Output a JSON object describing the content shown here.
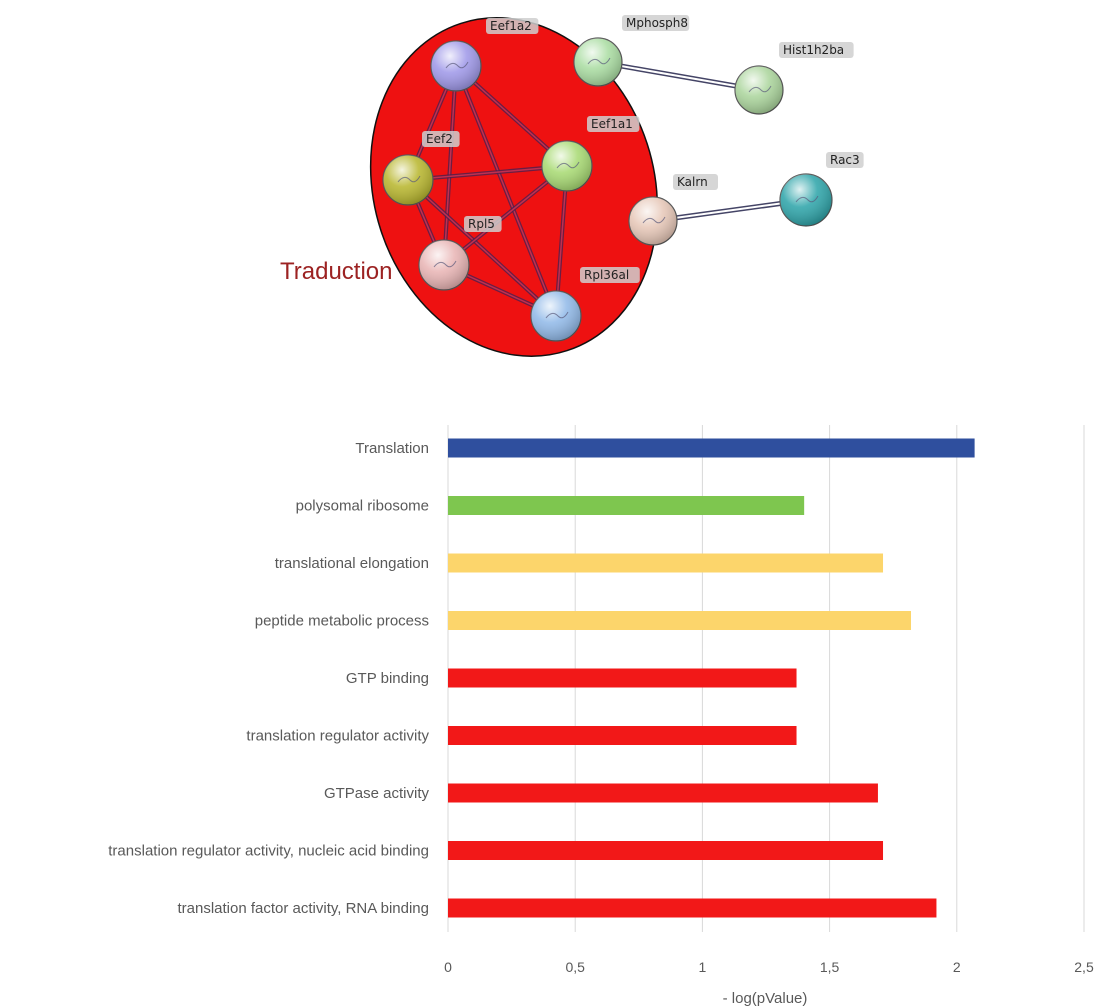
{
  "network": {
    "cluster_label": "Traduction",
    "cluster_color": "#ee1111",
    "nodes": [
      {
        "id": "Eef1a2",
        "label": "Eef1a2",
        "color": "#9d96e8"
      },
      {
        "id": "Eef2",
        "label": "Eef2",
        "color": "#b7b52a"
      },
      {
        "id": "Eef1a1",
        "label": "Eef1a1",
        "color": "#a6d970"
      },
      {
        "id": "Rpl5",
        "label": "Rpl5",
        "color": "#e8b3b3"
      },
      {
        "id": "Rpl36al",
        "label": "Rpl36al",
        "color": "#8fb8e8"
      },
      {
        "id": "Mphosph8",
        "label": "Mphosph8",
        "color": "#a8dca0"
      },
      {
        "id": "Hist1h2ba",
        "label": "Hist1h2ba",
        "color": "#a9d49a"
      },
      {
        "id": "Kalrn",
        "label": "Kalrn",
        "color": "#e6c6b6"
      },
      {
        "id": "Rac3",
        "label": "Rac3",
        "color": "#2aa3a8"
      }
    ],
    "edges": [
      {
        "source": "Eef1a2",
        "target": "Eef2"
      },
      {
        "source": "Eef1a2",
        "target": "Eef1a1"
      },
      {
        "source": "Eef1a2",
        "target": "Rpl5"
      },
      {
        "source": "Eef1a2",
        "target": "Rpl36al"
      },
      {
        "source": "Eef2",
        "target": "Eef1a1"
      },
      {
        "source": "Eef2",
        "target": "Rpl5"
      },
      {
        "source": "Eef2",
        "target": "Rpl36al"
      },
      {
        "source": "Eef1a1",
        "target": "Rpl5"
      },
      {
        "source": "Eef1a1",
        "target": "Rpl36al"
      },
      {
        "source": "Rpl5",
        "target": "Rpl36al"
      },
      {
        "source": "Mphosph8",
        "target": "Hist1h2ba"
      },
      {
        "source": "Kalrn",
        "target": "Rac3"
      }
    ]
  },
  "chart_data": {
    "type": "bar",
    "orientation": "horizontal",
    "title": "",
    "xlabel": "- log(pValue)",
    "ylabel": "",
    "xlim": [
      0,
      2.5
    ],
    "ticks": [
      {
        "value": 0,
        "label": "0"
      },
      {
        "value": 0.5,
        "label": "0,5"
      },
      {
        "value": 1,
        "label": "1"
      },
      {
        "value": 1.5,
        "label": "1,5"
      },
      {
        "value": 2,
        "label": "2"
      },
      {
        "value": 2.5,
        "label": "2,5"
      }
    ],
    "grid": true,
    "legend": false,
    "categories": [
      "Translation",
      "polysomal ribosome",
      "translational elongation",
      "peptide metabolic process",
      "GTP binding",
      "translation regulator activity",
      "GTPase activity",
      "translation regulator activity, nucleic acid binding",
      "translation factor activity, RNA binding"
    ],
    "values": [
      2.07,
      1.4,
      1.71,
      1.82,
      1.37,
      1.37,
      1.69,
      1.71,
      1.92
    ],
    "colors": [
      "#2f4f9e",
      "#7ec64f",
      "#fcd56b",
      "#fcd56b",
      "#f21818",
      "#f21818",
      "#f21818",
      "#f21818",
      "#f21818"
    ],
    "grid_color": "#d9d9d9"
  }
}
